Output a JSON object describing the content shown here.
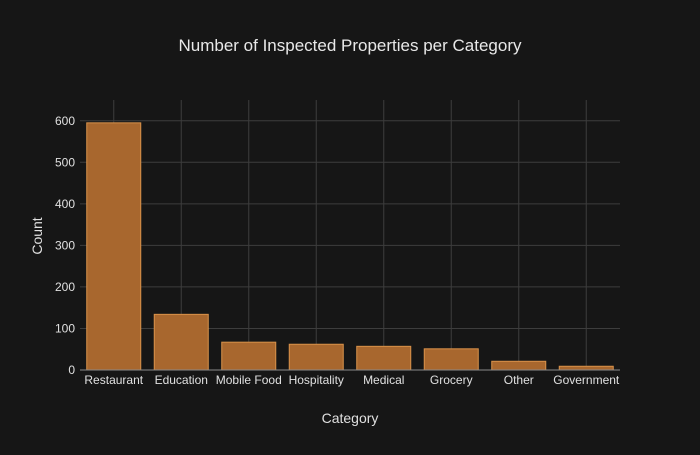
{
  "chart_data": {
    "type": "bar",
    "title": "Number of Inspected Properties per Category",
    "xlabel": "Category",
    "ylabel": "Count",
    "categories": [
      "Restaurant",
      "Education",
      "Mobile Food",
      "Hospitality",
      "Medical",
      "Grocery",
      "Other",
      "Government"
    ],
    "values": [
      595,
      134,
      67,
      62,
      57,
      51,
      21,
      9
    ],
    "ylim": [
      0,
      650
    ],
    "yticks": [
      0,
      100,
      200,
      300,
      400,
      500,
      600
    ],
    "grid": true,
    "legend": "none",
    "colors": {
      "background": "#161616",
      "bar_fill": "#a8672e",
      "bar_stroke": "#d9924a",
      "grid": "#3d3d3d",
      "text": "#e0e0e0",
      "title": "#e8e8e8"
    }
  }
}
